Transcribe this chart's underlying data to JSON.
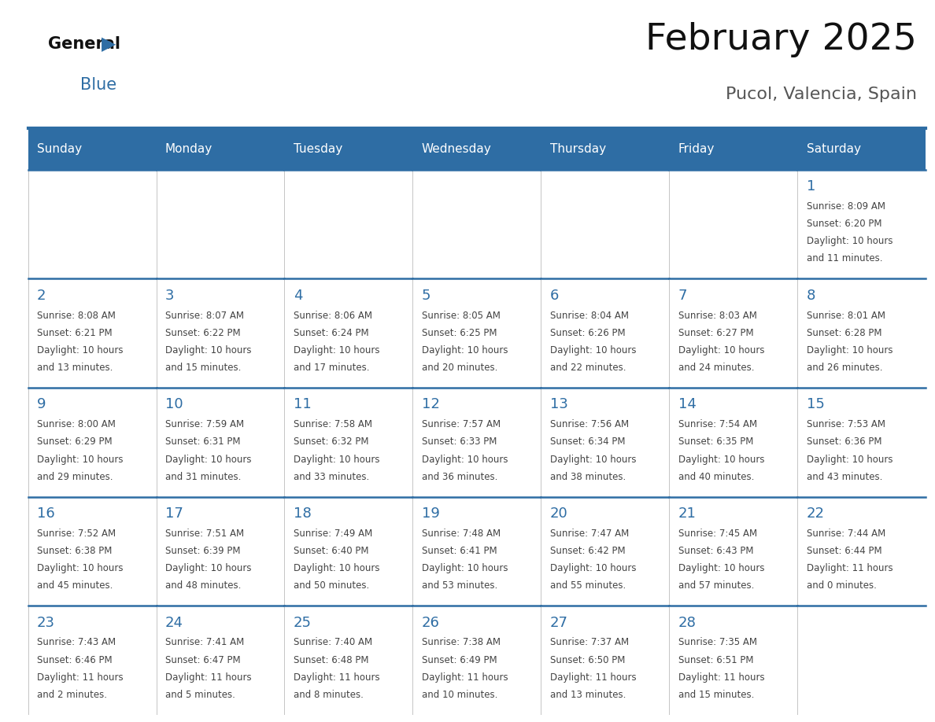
{
  "title": "February 2025",
  "subtitle": "Pucol, Valencia, Spain",
  "header_bg": "#2E6DA4",
  "header_text_color": "#FFFFFF",
  "day_number_color": "#2E6DA4",
  "text_color": "#444444",
  "border_color": "#BBBBBB",
  "days_of_week": [
    "Sunday",
    "Monday",
    "Tuesday",
    "Wednesday",
    "Thursday",
    "Friday",
    "Saturday"
  ],
  "calendar_data": [
    [
      null,
      null,
      null,
      null,
      null,
      null,
      {
        "day": 1,
        "sunrise": "8:09 AM",
        "sunset": "6:20 PM",
        "daylight_l1": "10 hours",
        "daylight_l2": "and 11 minutes."
      }
    ],
    [
      {
        "day": 2,
        "sunrise": "8:08 AM",
        "sunset": "6:21 PM",
        "daylight_l1": "10 hours",
        "daylight_l2": "and 13 minutes."
      },
      {
        "day": 3,
        "sunrise": "8:07 AM",
        "sunset": "6:22 PM",
        "daylight_l1": "10 hours",
        "daylight_l2": "and 15 minutes."
      },
      {
        "day": 4,
        "sunrise": "8:06 AM",
        "sunset": "6:24 PM",
        "daylight_l1": "10 hours",
        "daylight_l2": "and 17 minutes."
      },
      {
        "day": 5,
        "sunrise": "8:05 AM",
        "sunset": "6:25 PM",
        "daylight_l1": "10 hours",
        "daylight_l2": "and 20 minutes."
      },
      {
        "day": 6,
        "sunrise": "8:04 AM",
        "sunset": "6:26 PM",
        "daylight_l1": "10 hours",
        "daylight_l2": "and 22 minutes."
      },
      {
        "day": 7,
        "sunrise": "8:03 AM",
        "sunset": "6:27 PM",
        "daylight_l1": "10 hours",
        "daylight_l2": "and 24 minutes."
      },
      {
        "day": 8,
        "sunrise": "8:01 AM",
        "sunset": "6:28 PM",
        "daylight_l1": "10 hours",
        "daylight_l2": "and 26 minutes."
      }
    ],
    [
      {
        "day": 9,
        "sunrise": "8:00 AM",
        "sunset": "6:29 PM",
        "daylight_l1": "10 hours",
        "daylight_l2": "and 29 minutes."
      },
      {
        "day": 10,
        "sunrise": "7:59 AM",
        "sunset": "6:31 PM",
        "daylight_l1": "10 hours",
        "daylight_l2": "and 31 minutes."
      },
      {
        "day": 11,
        "sunrise": "7:58 AM",
        "sunset": "6:32 PM",
        "daylight_l1": "10 hours",
        "daylight_l2": "and 33 minutes."
      },
      {
        "day": 12,
        "sunrise": "7:57 AM",
        "sunset": "6:33 PM",
        "daylight_l1": "10 hours",
        "daylight_l2": "and 36 minutes."
      },
      {
        "day": 13,
        "sunrise": "7:56 AM",
        "sunset": "6:34 PM",
        "daylight_l1": "10 hours",
        "daylight_l2": "and 38 minutes."
      },
      {
        "day": 14,
        "sunrise": "7:54 AM",
        "sunset": "6:35 PM",
        "daylight_l1": "10 hours",
        "daylight_l2": "and 40 minutes."
      },
      {
        "day": 15,
        "sunrise": "7:53 AM",
        "sunset": "6:36 PM",
        "daylight_l1": "10 hours",
        "daylight_l2": "and 43 minutes."
      }
    ],
    [
      {
        "day": 16,
        "sunrise": "7:52 AM",
        "sunset": "6:38 PM",
        "daylight_l1": "10 hours",
        "daylight_l2": "and 45 minutes."
      },
      {
        "day": 17,
        "sunrise": "7:51 AM",
        "sunset": "6:39 PM",
        "daylight_l1": "10 hours",
        "daylight_l2": "and 48 minutes."
      },
      {
        "day": 18,
        "sunrise": "7:49 AM",
        "sunset": "6:40 PM",
        "daylight_l1": "10 hours",
        "daylight_l2": "and 50 minutes."
      },
      {
        "day": 19,
        "sunrise": "7:48 AM",
        "sunset": "6:41 PM",
        "daylight_l1": "10 hours",
        "daylight_l2": "and 53 minutes."
      },
      {
        "day": 20,
        "sunrise": "7:47 AM",
        "sunset": "6:42 PM",
        "daylight_l1": "10 hours",
        "daylight_l2": "and 55 minutes."
      },
      {
        "day": 21,
        "sunrise": "7:45 AM",
        "sunset": "6:43 PM",
        "daylight_l1": "10 hours",
        "daylight_l2": "and 57 minutes."
      },
      {
        "day": 22,
        "sunrise": "7:44 AM",
        "sunset": "6:44 PM",
        "daylight_l1": "11 hours",
        "daylight_l2": "and 0 minutes."
      }
    ],
    [
      {
        "day": 23,
        "sunrise": "7:43 AM",
        "sunset": "6:46 PM",
        "daylight_l1": "11 hours",
        "daylight_l2": "and 2 minutes."
      },
      {
        "day": 24,
        "sunrise": "7:41 AM",
        "sunset": "6:47 PM",
        "daylight_l1": "11 hours",
        "daylight_l2": "and 5 minutes."
      },
      {
        "day": 25,
        "sunrise": "7:40 AM",
        "sunset": "6:48 PM",
        "daylight_l1": "11 hours",
        "daylight_l2": "and 8 minutes."
      },
      {
        "day": 26,
        "sunrise": "7:38 AM",
        "sunset": "6:49 PM",
        "daylight_l1": "11 hours",
        "daylight_l2": "and 10 minutes."
      },
      {
        "day": 27,
        "sunrise": "7:37 AM",
        "sunset": "6:50 PM",
        "daylight_l1": "11 hours",
        "daylight_l2": "and 13 minutes."
      },
      {
        "day": 28,
        "sunrise": "7:35 AM",
        "sunset": "6:51 PM",
        "daylight_l1": "11 hours",
        "daylight_l2": "and 15 minutes."
      },
      null
    ]
  ]
}
